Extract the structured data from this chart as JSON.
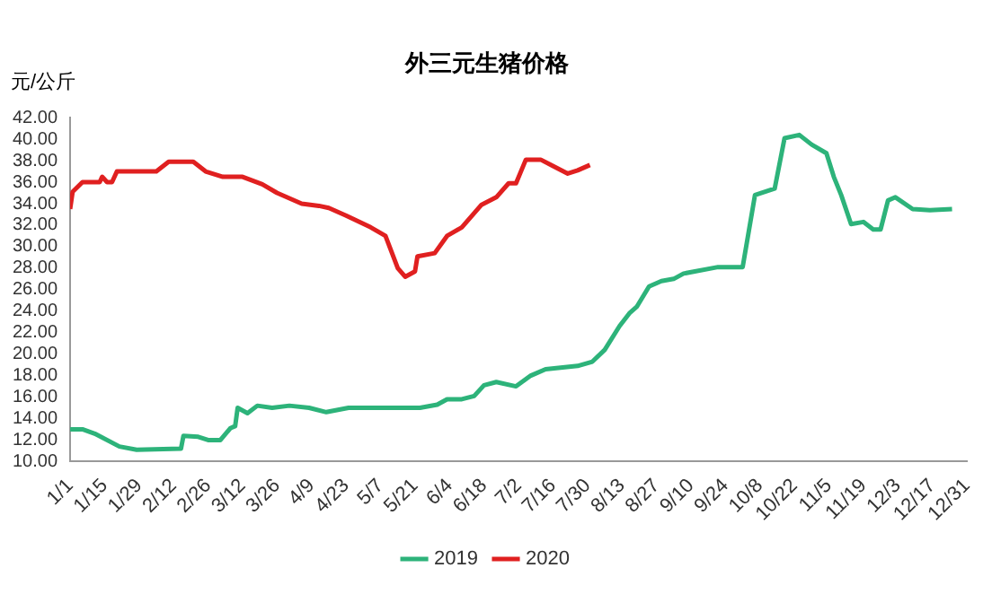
{
  "chart_data": {
    "type": "line",
    "title": "外三元生猪价格",
    "ylabel": "元/公斤",
    "xlim": [
      "--01-01",
      "--12-31"
    ],
    "xticks": [
      {
        "value": "--01-01",
        "label": "1/1"
      },
      {
        "value": "--01-15",
        "label": "1/15"
      },
      {
        "value": "--01-29",
        "label": "1/29"
      },
      {
        "value": "--02-12",
        "label": "2/12"
      },
      {
        "value": "--02-26",
        "label": "2/26"
      },
      {
        "value": "--03-12",
        "label": "3/12"
      },
      {
        "value": "--03-26",
        "label": "3/26"
      },
      {
        "value": "--04-09",
        "label": "4/9"
      },
      {
        "value": "--04-23",
        "label": "4/23"
      },
      {
        "value": "--05-07",
        "label": "5/7"
      },
      {
        "value": "--05-21",
        "label": "5/21"
      },
      {
        "value": "--06-04",
        "label": "6/4"
      },
      {
        "value": "--06-18",
        "label": "6/18"
      },
      {
        "value": "--07-02",
        "label": "7/2"
      },
      {
        "value": "--07-16",
        "label": "7/16"
      },
      {
        "value": "--07-30",
        "label": "7/30"
      },
      {
        "value": "--08-13",
        "label": "8/13"
      },
      {
        "value": "--08-27",
        "label": "8/27"
      },
      {
        "value": "--09-10",
        "label": "9/10"
      },
      {
        "value": "--09-24",
        "label": "9/24"
      },
      {
        "value": "--10-08",
        "label": "10/8"
      },
      {
        "value": "--10-22",
        "label": "10/22"
      },
      {
        "value": "--11-05",
        "label": "11/5"
      },
      {
        "value": "--11-19",
        "label": "11/19"
      },
      {
        "value": "--12-03",
        "label": "12/3"
      },
      {
        "value": "--12-17",
        "label": "12/17"
      },
      {
        "value": "--12-31",
        "label": "12/31"
      }
    ],
    "ylim": [
      10,
      42
    ],
    "yticks": [
      {
        "value": 10,
        "label": "10.00"
      },
      {
        "value": 12,
        "label": "12.00"
      },
      {
        "value": 14,
        "label": "14.00"
      },
      {
        "value": 16,
        "label": "16.00"
      },
      {
        "value": 18,
        "label": "18.00"
      },
      {
        "value": 20,
        "label": "20.00"
      },
      {
        "value": 22,
        "label": "22.00"
      },
      {
        "value": 24,
        "label": "24.00"
      },
      {
        "value": 26,
        "label": "26.00"
      },
      {
        "value": 28,
        "label": "28.00"
      },
      {
        "value": 30,
        "label": "30.00"
      },
      {
        "value": 32,
        "label": "32.00"
      },
      {
        "value": 34,
        "label": "34.00"
      },
      {
        "value": 36,
        "label": "36.00"
      },
      {
        "value": 38,
        "label": "38.00"
      },
      {
        "value": 40,
        "label": "40.00"
      },
      {
        "value": 42,
        "label": "42.00"
      }
    ],
    "grid": false,
    "legend": "bottom",
    "marker": "none",
    "line_style": "solid",
    "series": [
      {
        "name": "2019",
        "color": "#2db37a",
        "x": [
          "--01-01",
          "--01-06",
          "--01-11",
          "--01-21",
          "--01-28",
          "--02-15",
          "--02-16",
          "--02-22",
          "--02-26",
          "--03-03",
          "--03-07",
          "--03-09",
          "--03-10",
          "--03-14",
          "--03-18",
          "--03-24",
          "--03-31",
          "--04-08",
          "--04-15",
          "--04-24",
          "--05-23",
          "--05-30",
          "--06-03",
          "--06-09",
          "--06-14",
          "--06-18",
          "--06-23",
          "--07-01",
          "--07-07",
          "--07-13",
          "--07-26",
          "--08-01",
          "--08-06",
          "--08-12",
          "--08-16",
          "--08-19",
          "--08-24",
          "--08-29",
          "--09-03",
          "--09-07",
          "--09-21",
          "--10-01",
          "--10-06",
          "--10-14",
          "--10-18",
          "--10-24",
          "--10-29",
          "--11-04",
          "--11-07",
          "--11-10",
          "--11-14",
          "--11-19",
          "--11-23",
          "--11-26",
          "--11-29",
          "--12-02",
          "--12-09",
          "--12-16",
          "--12-25"
        ],
        "values": [
          13.0,
          13.0,
          12.6,
          11.4,
          11.1,
          11.2,
          12.4,
          12.3,
          12.0,
          12.0,
          13.1,
          13.3,
          15.0,
          14.5,
          15.2,
          15.0,
          15.2,
          15.0,
          14.6,
          15.0,
          15.0,
          15.3,
          15.8,
          15.8,
          16.1,
          17.1,
          17.4,
          17.0,
          18.0,
          18.6,
          18.9,
          19.3,
          20.4,
          22.6,
          23.8,
          24.4,
          26.3,
          26.8,
          27.0,
          27.5,
          28.1,
          28.1,
          34.8,
          35.4,
          40.1,
          40.4,
          39.5,
          38.7,
          36.5,
          34.8,
          32.1,
          32.3,
          31.6,
          31.6,
          34.3,
          34.6,
          33.5,
          33.4,
          33.5
        ]
      },
      {
        "name": "2020",
        "color": "#e02020",
        "x": [
          "--01-01",
          "--01-02",
          "--01-06",
          "--01-13",
          "--01-14",
          "--01-16",
          "--01-18",
          "--01-20",
          "--02-05",
          "--02-10",
          "--02-20",
          "--02-25",
          "--03-04",
          "--03-12",
          "--03-20",
          "--03-26",
          "--04-05",
          "--04-12",
          "--04-16",
          "--04-23",
          "--05-03",
          "--05-09",
          "--05-14",
          "--05-17",
          "--05-21",
          "--05-22",
          "--05-29",
          "--06-03",
          "--06-09",
          "--06-17",
          "--06-23",
          "--06-28",
          "--07-01",
          "--07-05",
          "--07-11",
          "--07-16",
          "--07-22",
          "--07-26",
          "--07-31"
        ],
        "values": [
          33.5,
          35.1,
          36.0,
          36.0,
          36.5,
          36.0,
          36.0,
          37.0,
          37.0,
          37.9,
          37.9,
          37.0,
          36.5,
          36.5,
          35.8,
          35.0,
          34.0,
          33.8,
          33.6,
          32.9,
          31.8,
          31.0,
          28.0,
          27.2,
          27.7,
          29.1,
          29.4,
          31.0,
          31.8,
          33.9,
          34.6,
          35.9,
          35.9,
          38.1,
          38.1,
          37.5,
          36.8,
          37.1,
          37.6
        ]
      }
    ]
  }
}
